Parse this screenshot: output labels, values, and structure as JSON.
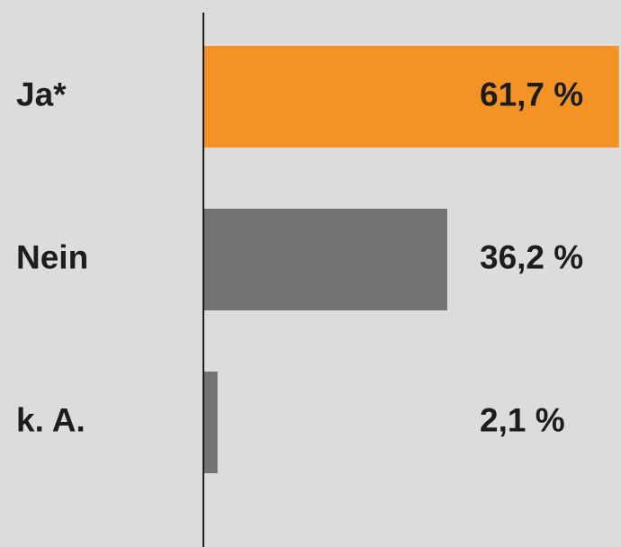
{
  "chart_data": {
    "type": "hbar",
    "categories": [
      "Ja*",
      "Nein",
      "k. A."
    ],
    "values": [
      61.7,
      36.2,
      2.1
    ],
    "value_labels": [
      "61,7 %",
      "36,2 %",
      "2,1 %"
    ],
    "colors": [
      "#f39325",
      "#717272",
      "#717272"
    ],
    "xlim": [
      0,
      62
    ]
  }
}
